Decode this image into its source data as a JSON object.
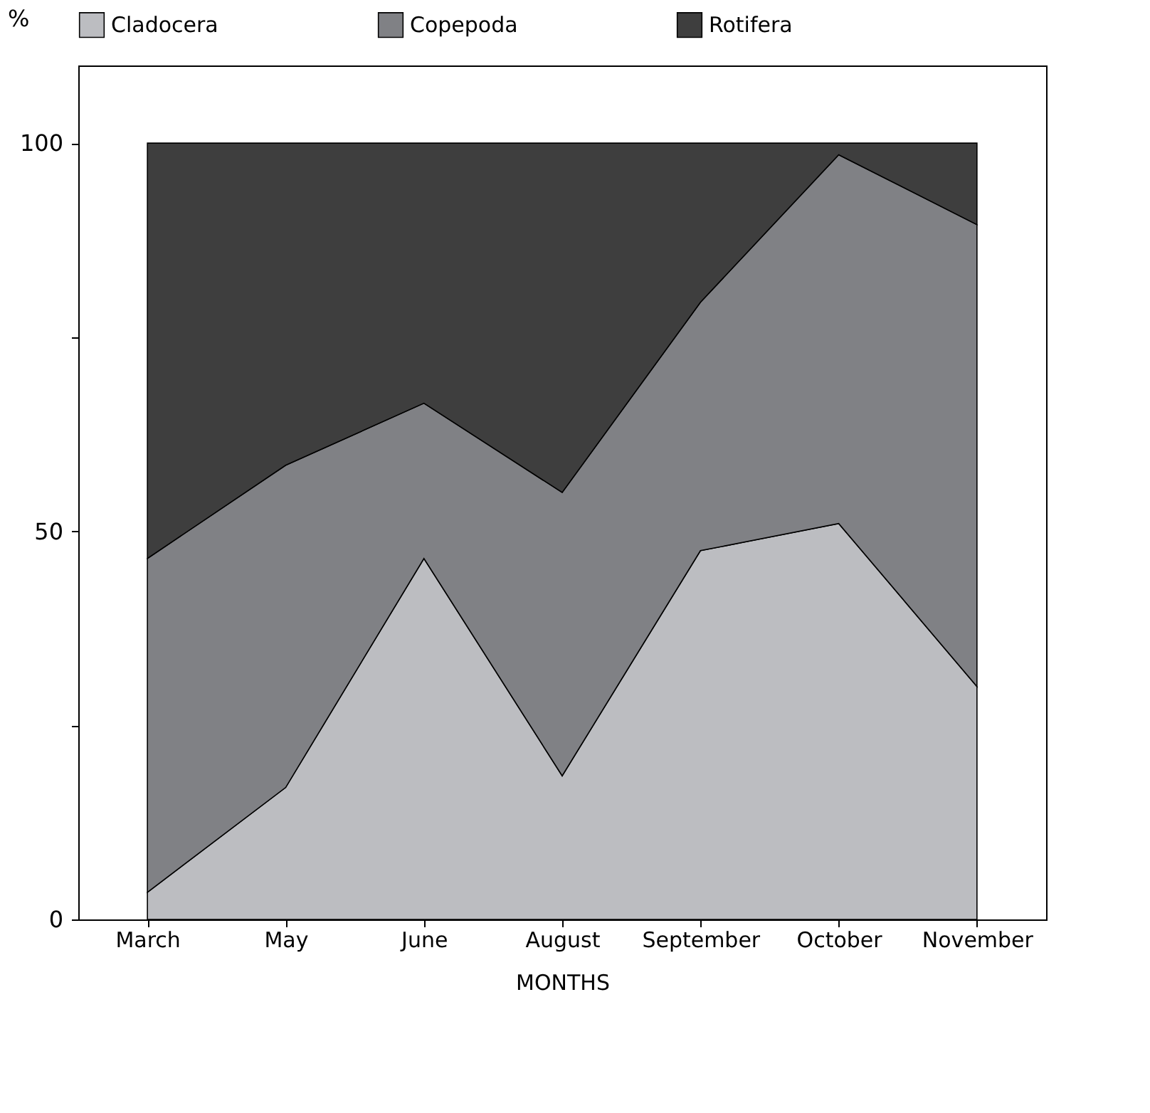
{
  "chart_data": {
    "type": "area",
    "stacked": true,
    "ylabel": "%",
    "xlabel": "MONTHS",
    "categories": [
      "March",
      "May",
      "June",
      "August",
      "September",
      "October",
      "November"
    ],
    "series": [
      {
        "name": "Cladocera",
        "color": "#bcbdc1",
        "values": [
          3.5,
          17,
          46.5,
          18.5,
          47.5,
          51,
          30
        ]
      },
      {
        "name": "Copepoda",
        "color": "#808185",
        "values": [
          43,
          41.5,
          20,
          36.5,
          32,
          47.5,
          59.5
        ]
      },
      {
        "name": "Rotifera",
        "color": "#3e3e3e",
        "values": [
          53.5,
          41.5,
          33.5,
          45,
          20.5,
          1.5,
          10.5
        ]
      }
    ],
    "ylim": [
      0,
      110
    ],
    "yticks": [
      0,
      {
        "value": 25,
        "label": null
      },
      50,
      {
        "value": 75,
        "label": null
      },
      100
    ],
    "grid": false,
    "legend": "top"
  }
}
